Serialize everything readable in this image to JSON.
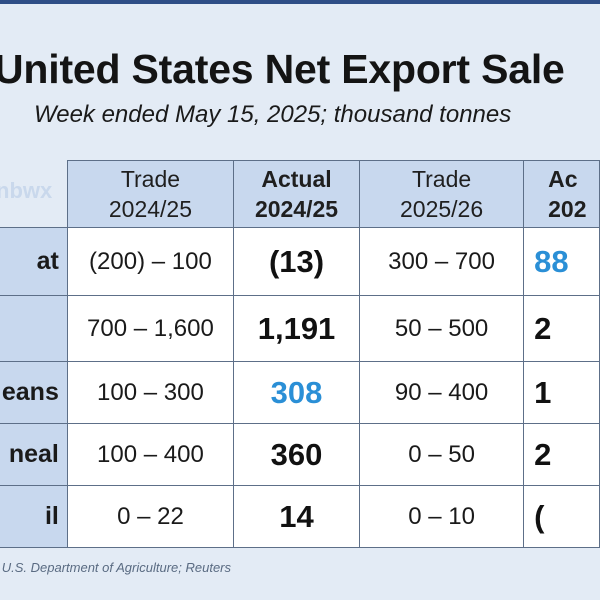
{
  "title": "United States Net Export Sale",
  "subtitle": "Week ended May 15, 2025; thousand tonnes",
  "watermark": "nbwx",
  "source": "s: U.S. Department of Agriculture; Reuters",
  "colors": {
    "header_fill": "#c8d8ee",
    "highlight": "#2a8fd6",
    "accent_bar": "#2e4e86"
  },
  "chart_data": {
    "type": "table",
    "columns": [
      {
        "line1": "Trade",
        "line2": "2024/25",
        "bold": false
      },
      {
        "line1": "Actual",
        "line2": "2024/25",
        "bold": true
      },
      {
        "line1": "Trade",
        "line2": "2025/26",
        "bold": false
      },
      {
        "line1": "Ac",
        "line2": "202",
        "bold": true
      }
    ],
    "rows": [
      {
        "label": "at",
        "trade_2425": "(200) – 100",
        "actual_2425": "(13)",
        "trade_2526": "300 – 700",
        "actual_2526": "88",
        "actual_2425_highlight": false,
        "actual_2526_highlight": true
      },
      {
        "label": "",
        "trade_2425": "700 – 1,600",
        "actual_2425": "1,191",
        "trade_2526": "50 – 500",
        "actual_2526": "2",
        "actual_2425_highlight": false,
        "actual_2526_highlight": false
      },
      {
        "label": "eans",
        "trade_2425": "100 – 300",
        "actual_2425": "308",
        "trade_2526": "90 – 400",
        "actual_2526": "1",
        "actual_2425_highlight": true,
        "actual_2526_highlight": false
      },
      {
        "label": "neal",
        "trade_2425": "100 – 400",
        "actual_2425": "360",
        "trade_2526": "0 – 50",
        "actual_2526": "2",
        "actual_2425_highlight": false,
        "actual_2526_highlight": false
      },
      {
        "label": "il",
        "trade_2425": "0 – 22",
        "actual_2425": "14",
        "trade_2526": "0 – 10",
        "actual_2526": "(",
        "actual_2425_highlight": false,
        "actual_2526_highlight": false
      }
    ]
  }
}
